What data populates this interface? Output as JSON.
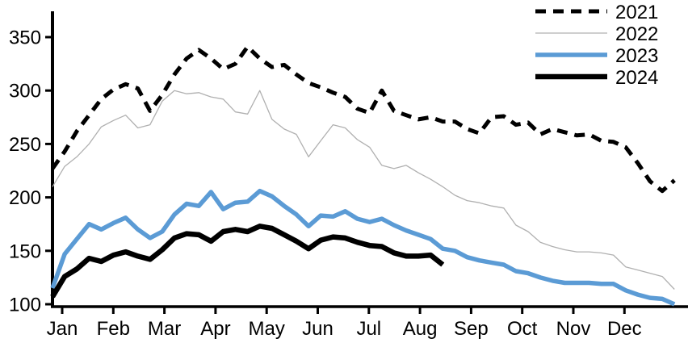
{
  "chart_data": {
    "type": "line",
    "title": "",
    "grid": false,
    "legend_position": "top-right",
    "x_axis": {
      "labels": [
        "Jan",
        "Feb",
        "Mar",
        "Apr",
        "May",
        "Jun",
        "Jul",
        "Aug",
        "Sep",
        "Oct",
        "Nov",
        "Dec"
      ]
    },
    "y_axis": {
      "ticks": [
        100,
        150,
        200,
        250,
        300,
        350
      ],
      "min": 100,
      "max": 358
    },
    "sampling": {
      "x_start_month": -0.19,
      "x_step_month": 0.2386,
      "note": "weekly points; x in month-tick units where Jan=0, Dec=11"
    },
    "series": [
      {
        "name": "2021",
        "style": "dashed",
        "color": "#000000",
        "width": 5,
        "values": [
          227,
          243,
          262,
          277,
          292,
          301,
          306,
          302,
          281,
          296,
          315,
          330,
          338,
          330,
          320,
          325,
          341,
          330,
          322,
          324,
          315,
          307,
          303,
          298,
          294,
          283,
          279,
          300,
          281,
          277,
          273,
          275,
          271,
          271,
          264,
          260,
          275,
          276,
          268,
          270,
          259,
          264,
          261,
          258,
          259,
          253,
          252,
          247,
          232,
          215,
          206,
          216
        ]
      },
      {
        "name": "2022",
        "style": "solid",
        "color": "#B0B0B0",
        "width": 1.3,
        "values": [
          210,
          229,
          238,
          250,
          266,
          272,
          277,
          265,
          268,
          290,
          300,
          297,
          298,
          294,
          292,
          280,
          278,
          300,
          273,
          264,
          259,
          238,
          253,
          268,
          265,
          254,
          247,
          230,
          227,
          230,
          223,
          217,
          210,
          202,
          197,
          195,
          192,
          190,
          174,
          168,
          158,
          154,
          151,
          149,
          149,
          148,
          146,
          135,
          132,
          129,
          126,
          114
        ]
      },
      {
        "name": "2023",
        "style": "solid",
        "color": "#5B9BD5",
        "width": 5.5,
        "values": [
          115,
          147,
          161,
          175,
          170,
          176,
          181,
          170,
          162,
          168,
          184,
          194,
          192,
          205,
          189,
          195,
          196,
          206,
          201,
          192,
          184,
          173,
          183,
          182,
          187,
          180,
          177,
          180,
          174,
          169,
          165,
          161,
          152,
          150,
          144,
          141,
          139,
          137,
          131,
          129,
          125,
          122,
          120,
          120,
          120,
          119,
          119,
          113,
          109,
          106,
          105,
          100
        ]
      },
      {
        "name": "2024",
        "style": "solid",
        "color": "#000000",
        "width": 6.5,
        "values": [
          107,
          126,
          133,
          143,
          140,
          146,
          149,
          145,
          142,
          151,
          162,
          166,
          165,
          159,
          168,
          170,
          168,
          173,
          171,
          165,
          159,
          152,
          160,
          163,
          162,
          158,
          155,
          154,
          148,
          145,
          145,
          146,
          137
        ]
      }
    ]
  }
}
